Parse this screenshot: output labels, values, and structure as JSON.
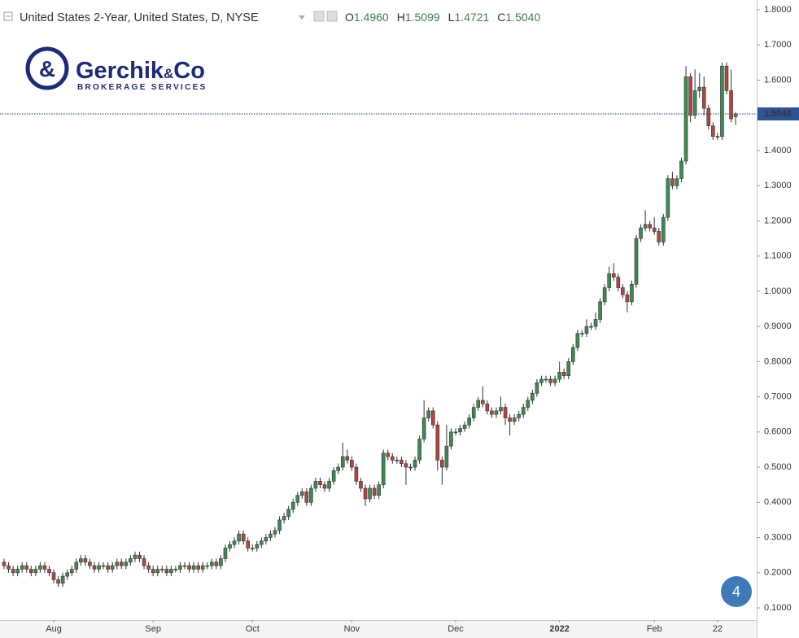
{
  "chart_data": {
    "type": "candlestick",
    "header": {
      "symbol": "United States 2-Year, United States, D, NYSE",
      "legend": [
        {
          "key": "O",
          "value": 1.496,
          "label": "1.4960"
        },
        {
          "key": "H",
          "value": 1.5099,
          "label": "1.5099"
        },
        {
          "key": "L",
          "value": 1.4721,
          "label": "1.4721"
        },
        {
          "key": "C",
          "value": 1.504,
          "label": "1.5040"
        }
      ]
    },
    "logo": {
      "name": "Gerchik",
      "amp": "&",
      "suffix": "Co",
      "tagline": "BROKERAGE SERVICES"
    },
    "badge": "4",
    "up_color": "#3e8a50",
    "down_color": "#b0473f",
    "categories": [
      null,
      null,
      null,
      null,
      null,
      null,
      null,
      null,
      null,
      null,
      null,
      "Aug",
      null,
      null,
      null,
      null,
      null,
      null,
      null,
      null,
      null,
      null,
      null,
      null,
      null,
      null,
      null,
      null,
      null,
      null,
      null,
      null,
      null,
      "Sep",
      null,
      null,
      null,
      null,
      null,
      null,
      null,
      null,
      null,
      null,
      null,
      null,
      null,
      null,
      null,
      null,
      null,
      null,
      null,
      null,
      null,
      "Oct",
      null,
      null,
      null,
      null,
      null,
      null,
      null,
      null,
      null,
      null,
      null,
      null,
      null,
      null,
      null,
      null,
      null,
      null,
      null,
      null,
      null,
      "Nov",
      null,
      null,
      null,
      null,
      null,
      null,
      null,
      null,
      null,
      null,
      null,
      null,
      null,
      null,
      null,
      null,
      null,
      null,
      null,
      null,
      null,
      null,
      "Dec",
      null,
      null,
      null,
      null,
      null,
      null,
      null,
      null,
      null,
      null,
      null,
      null,
      null,
      null,
      null,
      null,
      null,
      null,
      null,
      null,
      null,
      null,
      "2022",
      null,
      null,
      null,
      null,
      null,
      null,
      null,
      null,
      null,
      null,
      null,
      null,
      null,
      null,
      null,
      null,
      null,
      null,
      null,
      null,
      "Feb",
      null,
      null,
      null,
      null,
      null,
      null,
      null,
      null,
      null,
      null,
      null,
      null,
      null,
      "22",
      null,
      null,
      null,
      null
    ],
    "open": [
      0.23,
      0.22,
      0.21,
      0.2,
      0.21,
      0.22,
      0.21,
      0.2,
      0.21,
      0.22,
      0.21,
      0.2,
      0.18,
      0.17,
      0.19,
      0.2,
      0.21,
      0.23,
      0.24,
      0.23,
      0.22,
      0.21,
      0.22,
      0.22,
      0.21,
      0.22,
      0.23,
      0.22,
      0.23,
      0.24,
      0.25,
      0.24,
      0.22,
      0.21,
      0.2,
      0.21,
      0.21,
      0.2,
      0.21,
      0.21,
      0.22,
      0.22,
      0.21,
      0.22,
      0.21,
      0.22,
      0.22,
      0.23,
      0.22,
      0.24,
      0.27,
      0.28,
      0.29,
      0.31,
      0.29,
      0.27,
      0.27,
      0.28,
      0.29,
      0.3,
      0.31,
      0.32,
      0.35,
      0.36,
      0.38,
      0.4,
      0.42,
      0.43,
      0.4,
      0.44,
      0.46,
      0.45,
      0.44,
      0.46,
      0.49,
      0.5,
      0.53,
      0.52,
      0.5,
      0.46,
      0.44,
      0.41,
      0.44,
      0.42,
      0.45,
      0.54,
      0.53,
      0.52,
      0.52,
      0.51,
      0.5,
      0.5,
      0.52,
      0.58,
      0.64,
      0.66,
      0.62,
      0.52,
      0.5,
      0.56,
      0.6,
      0.6,
      0.61,
      0.62,
      0.64,
      0.67,
      0.69,
      0.68,
      0.66,
      0.65,
      0.66,
      0.67,
      0.64,
      0.63,
      0.64,
      0.65,
      0.67,
      0.69,
      0.71,
      0.74,
      0.75,
      0.75,
      0.74,
      0.75,
      0.77,
      0.76,
      0.8,
      0.84,
      0.88,
      0.88,
      0.9,
      0.9,
      0.92,
      0.97,
      1.01,
      1.05,
      1.04,
      1.01,
      0.99,
      0.97,
      1.02,
      1.15,
      1.18,
      1.19,
      1.18,
      1.17,
      1.14,
      1.21,
      1.32,
      1.3,
      1.32,
      1.37,
      1.61,
      1.5,
      1.57,
      1.58,
      1.52,
      1.47,
      1.44,
      1.44,
      1.64,
      1.57,
      1.496
    ],
    "high": [
      0.24,
      0.23,
      0.22,
      0.22,
      0.23,
      0.23,
      0.22,
      0.22,
      0.23,
      0.23,
      0.22,
      0.21,
      0.19,
      0.2,
      0.21,
      0.22,
      0.24,
      0.25,
      0.25,
      0.24,
      0.23,
      0.23,
      0.23,
      0.23,
      0.23,
      0.24,
      0.24,
      0.24,
      0.25,
      0.26,
      0.26,
      0.25,
      0.23,
      0.22,
      0.22,
      0.22,
      0.22,
      0.22,
      0.22,
      0.23,
      0.23,
      0.23,
      0.23,
      0.23,
      0.23,
      0.23,
      0.24,
      0.24,
      0.25,
      0.28,
      0.29,
      0.3,
      0.32,
      0.32,
      0.3,
      0.28,
      0.29,
      0.3,
      0.31,
      0.32,
      0.33,
      0.36,
      0.37,
      0.39,
      0.41,
      0.43,
      0.44,
      0.44,
      0.45,
      0.47,
      0.47,
      0.46,
      0.47,
      0.5,
      0.51,
      0.57,
      0.55,
      0.53,
      0.51,
      0.47,
      0.45,
      0.45,
      0.45,
      0.46,
      0.55,
      0.55,
      0.54,
      0.53,
      0.53,
      0.52,
      0.51,
      0.53,
      0.59,
      0.69,
      0.67,
      0.67,
      0.63,
      0.53,
      0.62,
      0.61,
      0.61,
      0.62,
      0.63,
      0.65,
      0.68,
      0.7,
      0.73,
      0.69,
      0.67,
      0.67,
      0.7,
      0.68,
      0.65,
      0.65,
      0.66,
      0.68,
      0.7,
      0.72,
      0.75,
      0.76,
      0.76,
      0.76,
      0.76,
      0.8,
      0.78,
      0.81,
      0.85,
      0.89,
      0.89,
      0.92,
      0.91,
      0.94,
      0.98,
      1.02,
      1.07,
      1.08,
      1.05,
      1.02,
      1.0,
      1.03,
      1.16,
      1.19,
      1.23,
      1.2,
      1.21,
      1.18,
      1.22,
      1.33,
      1.34,
      1.33,
      1.38,
      1.64,
      1.62,
      1.63,
      1.62,
      1.61,
      1.53,
      1.48,
      1.45,
      1.65,
      1.65,
      1.63,
      1.5099
    ],
    "low": [
      0.21,
      0.2,
      0.19,
      0.19,
      0.2,
      0.2,
      0.19,
      0.19,
      0.2,
      0.2,
      0.19,
      0.17,
      0.16,
      0.16,
      0.18,
      0.19,
      0.2,
      0.22,
      0.22,
      0.21,
      0.2,
      0.2,
      0.21,
      0.2,
      0.2,
      0.21,
      0.21,
      0.21,
      0.22,
      0.23,
      0.23,
      0.21,
      0.2,
      0.19,
      0.19,
      0.2,
      0.19,
      0.19,
      0.2,
      0.2,
      0.21,
      0.2,
      0.2,
      0.2,
      0.2,
      0.21,
      0.21,
      0.21,
      0.21,
      0.23,
      0.26,
      0.27,
      0.28,
      0.28,
      0.26,
      0.26,
      0.26,
      0.27,
      0.28,
      0.29,
      0.3,
      0.31,
      0.34,
      0.35,
      0.37,
      0.39,
      0.41,
      0.39,
      0.39,
      0.43,
      0.44,
      0.43,
      0.43,
      0.45,
      0.48,
      0.49,
      0.51,
      0.49,
      0.45,
      0.43,
      0.39,
      0.4,
      0.41,
      0.41,
      0.44,
      0.52,
      0.51,
      0.51,
      0.5,
      0.45,
      0.49,
      0.49,
      0.51,
      0.57,
      0.63,
      0.61,
      0.49,
      0.45,
      0.49,
      0.55,
      0.59,
      0.59,
      0.6,
      0.61,
      0.63,
      0.66,
      0.67,
      0.65,
      0.64,
      0.64,
      0.65,
      0.62,
      0.59,
      0.62,
      0.63,
      0.64,
      0.66,
      0.68,
      0.7,
      0.73,
      0.74,
      0.73,
      0.73,
      0.74,
      0.75,
      0.75,
      0.79,
      0.83,
      0.87,
      0.87,
      0.89,
      0.89,
      0.91,
      0.96,
      1.0,
      1.03,
      1.0,
      0.98,
      0.94,
      0.96,
      1.01,
      1.14,
      1.17,
      1.17,
      1.16,
      1.13,
      1.13,
      1.2,
      1.29,
      1.29,
      1.31,
      1.36,
      1.48,
      1.49,
      1.55,
      1.5,
      1.46,
      1.43,
      1.43,
      1.43,
      1.56,
      1.48,
      1.4721
    ],
    "close": [
      0.22,
      0.21,
      0.2,
      0.21,
      0.22,
      0.21,
      0.2,
      0.21,
      0.22,
      0.21,
      0.2,
      0.18,
      0.17,
      0.19,
      0.2,
      0.21,
      0.23,
      0.24,
      0.23,
      0.22,
      0.21,
      0.22,
      0.22,
      0.21,
      0.22,
      0.23,
      0.22,
      0.23,
      0.24,
      0.25,
      0.24,
      0.22,
      0.21,
      0.2,
      0.21,
      0.21,
      0.2,
      0.21,
      0.21,
      0.22,
      0.22,
      0.21,
      0.22,
      0.21,
      0.22,
      0.22,
      0.23,
      0.22,
      0.24,
      0.27,
      0.28,
      0.29,
      0.31,
      0.29,
      0.27,
      0.27,
      0.28,
      0.29,
      0.3,
      0.31,
      0.32,
      0.35,
      0.36,
      0.38,
      0.4,
      0.42,
      0.43,
      0.4,
      0.44,
      0.46,
      0.45,
      0.44,
      0.46,
      0.49,
      0.5,
      0.53,
      0.52,
      0.5,
      0.46,
      0.44,
      0.41,
      0.44,
      0.42,
      0.45,
      0.54,
      0.53,
      0.52,
      0.52,
      0.51,
      0.5,
      0.5,
      0.52,
      0.58,
      0.64,
      0.66,
      0.62,
      0.52,
      0.5,
      0.56,
      0.6,
      0.6,
      0.61,
      0.62,
      0.64,
      0.67,
      0.69,
      0.68,
      0.66,
      0.65,
      0.66,
      0.67,
      0.64,
      0.63,
      0.64,
      0.65,
      0.67,
      0.69,
      0.71,
      0.74,
      0.75,
      0.75,
      0.74,
      0.75,
      0.77,
      0.76,
      0.8,
      0.84,
      0.88,
      0.88,
      0.9,
      0.9,
      0.92,
      0.97,
      1.01,
      1.05,
      1.04,
      1.01,
      0.99,
      0.97,
      1.02,
      1.15,
      1.18,
      1.19,
      1.18,
      1.17,
      1.14,
      1.21,
      1.32,
      1.3,
      1.32,
      1.37,
      1.61,
      1.5,
      1.57,
      1.58,
      1.52,
      1.47,
      1.44,
      1.44,
      1.64,
      1.57,
      1.49,
      1.504
    ],
    "current_price": {
      "value": 1.504,
      "label": "1.5040"
    },
    "ylim": [
      0.0653,
      1.8278
    ],
    "yticks": [
      {
        "value": 0.1,
        "label": "0.1000"
      },
      {
        "value": 0.2,
        "label": "0.2000"
      },
      {
        "value": 0.3,
        "label": "0.3000"
      },
      {
        "value": 0.4,
        "label": "0.4000"
      },
      {
        "value": 0.5,
        "label": "0.5000"
      },
      {
        "value": 0.6,
        "label": "0.6000"
      },
      {
        "value": 0.7,
        "label": "0.7000"
      },
      {
        "value": 0.8,
        "label": "0.8000"
      },
      {
        "value": 0.9,
        "label": "0.9000"
      },
      {
        "value": 1.0,
        "label": "1.0000"
      },
      {
        "value": 1.1,
        "label": "1.1000"
      },
      {
        "value": 1.2,
        "label": "1.2000"
      },
      {
        "value": 1.3,
        "label": "1.3000"
      },
      {
        "value": 1.4,
        "label": "1.4000"
      },
      {
        "value": 1.5,
        "label": "1.5000"
      },
      {
        "value": 1.6,
        "label": "1.6000"
      },
      {
        "value": 1.7,
        "label": "1.7000"
      },
      {
        "value": 1.8,
        "label": "1.8000"
      }
    ],
    "grid": false
  }
}
